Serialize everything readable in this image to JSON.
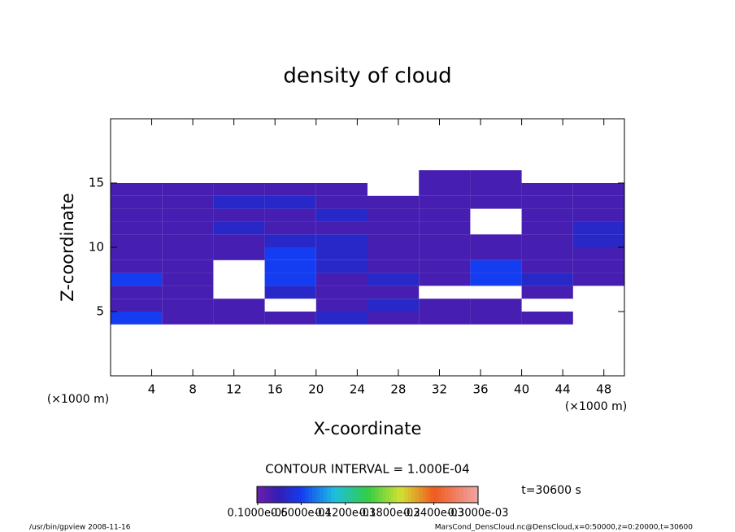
{
  "chart_data": {
    "type": "heatmap",
    "title": "density of cloud",
    "x_label": "X-coordinate",
    "y_label": "Z-coordinate",
    "x_unit": "(×1000 m)",
    "y_unit": "(×1000 m)",
    "xlim": [
      0,
      50
    ],
    "ylim": [
      0,
      20
    ],
    "xticks": [
      4,
      8,
      12,
      16,
      20,
      24,
      28,
      32,
      36,
      40,
      44,
      48
    ],
    "yticks": [
      5,
      10,
      15
    ],
    "x_edges": [
      0,
      5,
      10,
      15,
      20,
      25,
      30,
      35,
      40,
      45,
      50
    ],
    "z_edges": [
      4,
      5,
      6,
      7,
      8,
      9,
      10,
      11,
      12,
      13,
      14,
      15,
      16
    ],
    "values": [
      [
        6e-05,
        2e-05,
        2e-05,
        2e-05,
        4e-05,
        2e-05,
        2e-05,
        2e-05,
        2e-05,
        null
      ],
      [
        2e-05,
        2e-05,
        2e-05,
        null,
        2e-05,
        4e-05,
        2e-05,
        2e-05,
        null,
        null
      ],
      [
        2e-05,
        2e-05,
        null,
        4e-05,
        2e-05,
        2e-05,
        null,
        null,
        2e-05,
        null
      ],
      [
        6e-05,
        2e-05,
        null,
        6e-05,
        2e-05,
        4e-05,
        2e-05,
        6e-05,
        4e-05,
        2e-05
      ],
      [
        2e-05,
        2e-05,
        null,
        6e-05,
        4e-05,
        2e-05,
        2e-05,
        6e-05,
        2e-05,
        2e-05
      ],
      [
        2e-05,
        2e-05,
        2e-05,
        6e-05,
        4e-05,
        2e-05,
        2e-05,
        2e-05,
        2e-05,
        2e-05
      ],
      [
        2e-05,
        2e-05,
        2e-05,
        4e-05,
        4e-05,
        2e-05,
        2e-05,
        2e-05,
        2e-05,
        4e-05
      ],
      [
        2e-05,
        2e-05,
        4e-05,
        2e-05,
        2e-05,
        2e-05,
        2e-05,
        null,
        2e-05,
        4e-05
      ],
      [
        2e-05,
        2e-05,
        2e-05,
        2e-05,
        4e-05,
        2e-05,
        2e-05,
        null,
        2e-05,
        2e-05
      ],
      [
        2e-05,
        2e-05,
        4e-05,
        4e-05,
        2e-05,
        2e-05,
        2e-05,
        2e-05,
        2e-05,
        2e-05
      ],
      [
        2e-05,
        2e-05,
        2e-05,
        2e-05,
        2e-05,
        null,
        2e-05,
        2e-05,
        2e-05,
        2e-05
      ],
      [
        null,
        null,
        null,
        null,
        null,
        null,
        2e-05,
        2e-05,
        null,
        null
      ]
    ],
    "colorbar": {
      "lim": [
        0,
        0.0003
      ],
      "ticks": [
        {
          "value": 1e-06,
          "label": "0.1000e-05"
        },
        {
          "value": 6e-05,
          "label": "0.6000e-04"
        },
        {
          "value": 0.00012,
          "label": "0.1200e-03"
        },
        {
          "value": 0.00018,
          "label": "0.1800e-03"
        },
        {
          "value": 0.00024,
          "label": "0.2400e-03"
        },
        {
          "value": 0.0003,
          "label": "0.3000e-03"
        }
      ]
    },
    "contour_interval": "CONTOUR INTERVAL = 1.000E-04",
    "time_label": "t=30600 s",
    "footer_left": "/usr/bin/gpview  2008-11-16",
    "footer_right": "MarsCond_DensCloud.nc@DensCloud,x=0:50000,z=0:20000,t=30600"
  }
}
